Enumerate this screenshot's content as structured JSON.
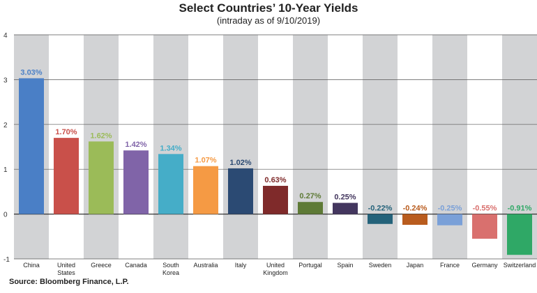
{
  "chart_data": {
    "type": "bar",
    "title": "Select Countries’ 10-Year Yields",
    "subtitle": "(intraday as of 9/10/2019)",
    "source": "Source: Bloomberg Finance, L.P.",
    "ylim": [
      -1,
      4
    ],
    "yticks": [
      "4",
      "3",
      "2",
      "1",
      "0",
      "-1"
    ],
    "grid": true,
    "categories": [
      [
        "China"
      ],
      [
        "United",
        "States"
      ],
      [
        "Greece"
      ],
      [
        "Canada"
      ],
      [
        "South",
        "Korea"
      ],
      [
        "Australia"
      ],
      [
        "Italy"
      ],
      [
        "United",
        "Kingdom"
      ],
      [
        "Portugal"
      ],
      [
        "Spain"
      ],
      [
        "Sweden"
      ],
      [
        "Japan"
      ],
      [
        "France"
      ],
      [
        "Germany"
      ],
      [
        "Switzerland"
      ]
    ],
    "values": [
      3.03,
      1.7,
      1.62,
      1.42,
      1.34,
      1.07,
      1.02,
      0.63,
      0.27,
      0.25,
      -0.22,
      -0.24,
      -0.25,
      -0.55,
      -0.91
    ],
    "data_labels": [
      "3.03%",
      "1.70%",
      "1.62%",
      "1.42%",
      "1.34%",
      "1.07%",
      "1.02%",
      "0.63%",
      "0.27%",
      "0.25%",
      "-0.22%",
      "-0.24%",
      "-0.25%",
      "-0.55%",
      "-0.91%"
    ],
    "colors": [
      "#4a7fc6",
      "#c9504a",
      "#9bbb58",
      "#8064a8",
      "#45adc8",
      "#f59a44",
      "#2b4a73",
      "#7f2a2a",
      "#5e7a36",
      "#43365e",
      "#24627a",
      "#b95c1e",
      "#7aa0d8",
      "#d9706e",
      "#2fa866"
    ],
    "band_color": "#d2d3d5"
  }
}
